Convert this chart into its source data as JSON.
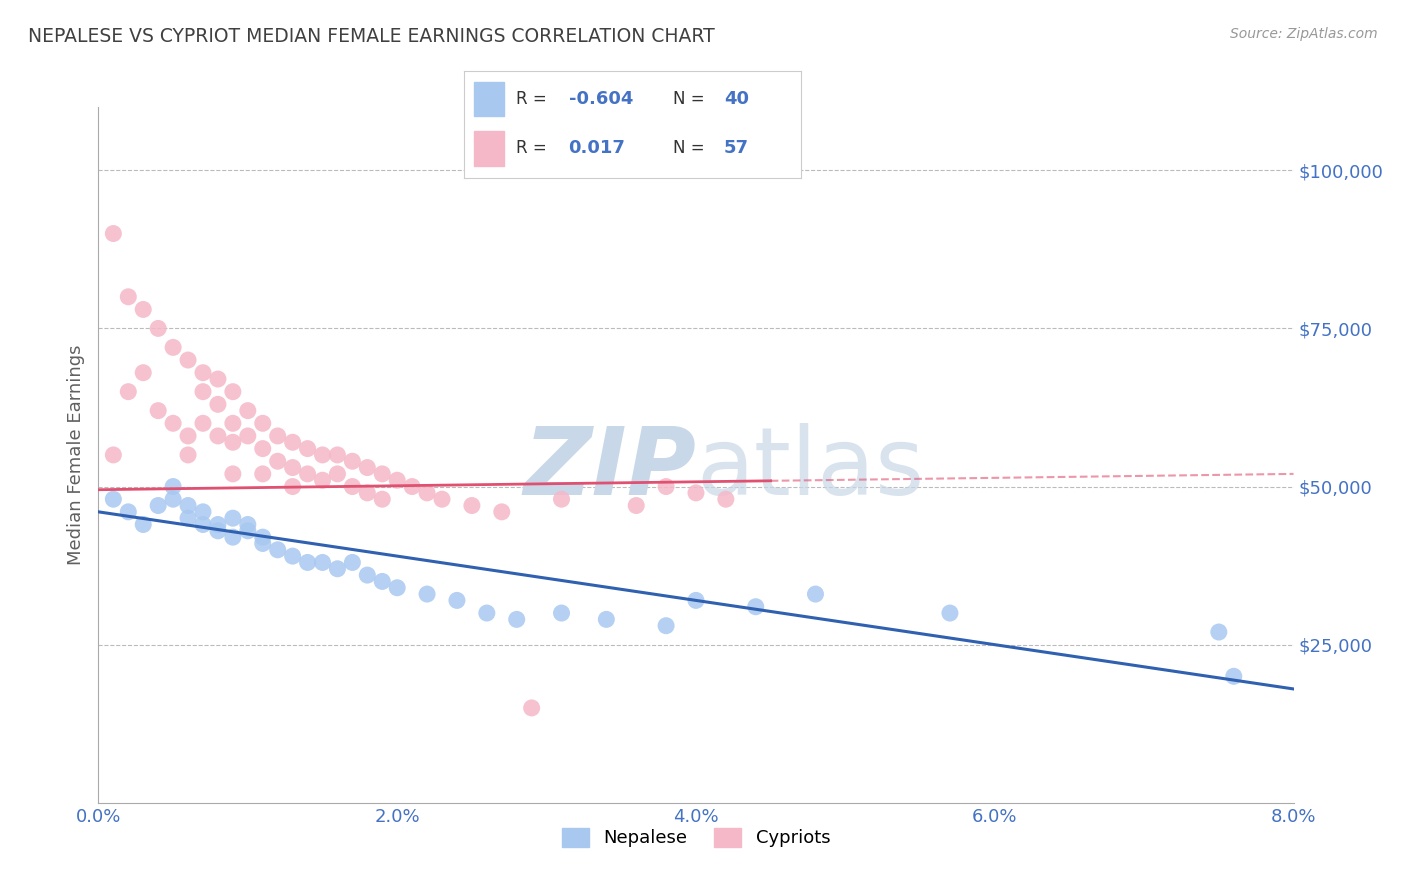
{
  "title": "NEPALESE VS CYPRIOT MEDIAN FEMALE EARNINGS CORRELATION CHART",
  "source": "Source: ZipAtlas.com",
  "ylabel": "Median Female Earnings",
  "xlim": [
    0.0,
    0.08
  ],
  "ylim": [
    0,
    110000
  ],
  "yticks": [
    0,
    25000,
    50000,
    75000,
    100000
  ],
  "ytick_labels": [
    "",
    "$25,000",
    "$50,000",
    "$75,000",
    "$100,000"
  ],
  "xtick_labels": [
    "0.0%",
    "2.0%",
    "4.0%",
    "6.0%",
    "8.0%"
  ],
  "xticks": [
    0.0,
    0.02,
    0.04,
    0.06,
    0.08
  ],
  "nepalese_R": -0.604,
  "nepalese_N": 40,
  "cypriot_R": 0.017,
  "cypriot_N": 57,
  "blue_color": "#A8C8F0",
  "pink_color": "#F5B8C8",
  "blue_line_color": "#3060B0",
  "pink_line_color": "#E05070",
  "title_color": "#404040",
  "axis_label_color": "#606060",
  "tick_label_color": "#4472C4",
  "grid_color": "#BBBBBB",
  "background_color": "#FFFFFF",
  "watermark_color": "#C8D8E8",
  "legend_text_color": "#333333",
  "legend_value_color": "#4472C4",
  "nepalese_x": [
    0.001,
    0.002,
    0.003,
    0.004,
    0.005,
    0.005,
    0.006,
    0.006,
    0.007,
    0.007,
    0.008,
    0.008,
    0.009,
    0.009,
    0.01,
    0.01,
    0.011,
    0.011,
    0.012,
    0.013,
    0.014,
    0.015,
    0.016,
    0.017,
    0.018,
    0.019,
    0.02,
    0.022,
    0.024,
    0.026,
    0.028,
    0.031,
    0.034,
    0.038,
    0.04,
    0.044,
    0.048,
    0.057,
    0.075,
    0.076
  ],
  "nepalese_y": [
    48000,
    46000,
    44000,
    47000,
    50000,
    48000,
    47000,
    45000,
    46000,
    44000,
    44000,
    43000,
    45000,
    42000,
    44000,
    43000,
    42000,
    41000,
    40000,
    39000,
    38000,
    38000,
    37000,
    38000,
    36000,
    35000,
    34000,
    33000,
    32000,
    30000,
    29000,
    30000,
    29000,
    28000,
    32000,
    31000,
    33000,
    30000,
    27000,
    20000
  ],
  "cypriot_x": [
    0.001,
    0.001,
    0.002,
    0.002,
    0.003,
    0.003,
    0.004,
    0.004,
    0.005,
    0.005,
    0.006,
    0.006,
    0.006,
    0.007,
    0.007,
    0.007,
    0.008,
    0.008,
    0.008,
    0.009,
    0.009,
    0.009,
    0.009,
    0.01,
    0.01,
    0.011,
    0.011,
    0.011,
    0.012,
    0.012,
    0.013,
    0.013,
    0.013,
    0.014,
    0.014,
    0.015,
    0.015,
    0.016,
    0.016,
    0.017,
    0.017,
    0.018,
    0.018,
    0.019,
    0.019,
    0.02,
    0.021,
    0.022,
    0.023,
    0.025,
    0.027,
    0.029,
    0.031,
    0.036,
    0.038,
    0.04,
    0.042
  ],
  "cypriot_y": [
    90000,
    55000,
    80000,
    65000,
    78000,
    68000,
    75000,
    62000,
    72000,
    60000,
    70000,
    58000,
    55000,
    68000,
    65000,
    60000,
    67000,
    63000,
    58000,
    65000,
    60000,
    57000,
    52000,
    62000,
    58000,
    60000,
    56000,
    52000,
    58000,
    54000,
    57000,
    53000,
    50000,
    56000,
    52000,
    55000,
    51000,
    55000,
    52000,
    54000,
    50000,
    53000,
    49000,
    52000,
    48000,
    51000,
    50000,
    49000,
    48000,
    47000,
    46000,
    15000,
    48000,
    47000,
    50000,
    49000,
    48000
  ]
}
